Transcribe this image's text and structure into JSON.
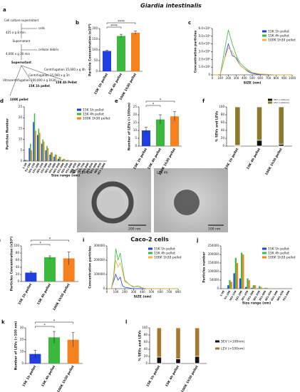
{
  "figure": {
    "title_top": "Giardia intestinalis",
    "title_bottom": "Caco-2 cells"
  },
  "diagram": {
    "panel": "a",
    "nodes": [
      "Cell culture supernatant",
      "425 x g 8 min",
      "cells",
      "Supernatant",
      "4,000 x g 30 min",
      "cellular debris",
      "Supernatant",
      "Centrifugation 15,000 x g 4h",
      "Ultracentrifugation 100,000 x g 1h30",
      "Centrifugation 15,000 x g 1h",
      "15K 1h pellet",
      "15K 4h Pellet",
      "100K pellet"
    ]
  },
  "images": {
    "panel": "g",
    "items": [
      {
        "label": "LEV 1h",
        "scale": "200 nm"
      },
      {
        "label": "LEV 4h",
        "scale": "100 nm"
      }
    ]
  },
  "chart_data": [
    {
      "panel": "b",
      "type": "bar",
      "ylabel": "Particle Concentration (x10⁹)",
      "categories": [
        "15K 1h pellet",
        "15K 4h pellet",
        "100K 1h30 pellet"
      ],
      "values": [
        95,
        165,
        180
      ],
      "errors": [
        3,
        8,
        8
      ],
      "colors": [
        "#1f3fe0",
        "#3cb83c",
        "#f5821f"
      ],
      "ylim": [
        0,
        200
      ],
      "yticks": [
        0,
        50,
        100,
        150,
        200
      ],
      "annotations": [
        {
          "text": "****",
          "between": [
            "15K 1h pellet",
            "15K 4h pellet"
          ]
        },
        {
          "text": "****",
          "between": [
            "15K 1h pellet",
            "100K 1h30 pellet"
          ]
        }
      ]
    },
    {
      "panel": "c",
      "type": "line",
      "xlabel": "SIZE (nm)",
      "ylabel": "Concentration particles",
      "x": [
        0,
        50,
        100,
        150,
        200,
        250,
        300,
        350,
        400,
        450,
        500,
        550,
        600,
        700,
        800,
        900,
        1000
      ],
      "series": [
        {
          "name": "15K 1h pellet",
          "color": "#1f3fe0",
          "values": [
            0,
            0,
            3000000,
            200000000,
            400000000,
            250000000,
            220000000,
            120000000,
            80000000,
            40000000,
            20000000,
            10000000,
            5000000,
            0,
            0,
            0,
            0
          ]
        },
        {
          "name": "15K 4h pellet",
          "color": "#3cb83c",
          "values": [
            0,
            0,
            5000000,
            300000000,
            580000000,
            400000000,
            250000000,
            150000000,
            100000000,
            60000000,
            30000000,
            20000000,
            10000000,
            5000000,
            0,
            0,
            0
          ]
        },
        {
          "name": "100K 1h30 pellet",
          "color": "#f5b040",
          "values": [
            0,
            0,
            3000000,
            200000000,
            350000000,
            300000000,
            200000000,
            120000000,
            80000000,
            50000000,
            30000000,
            20000000,
            10000000,
            5000000,
            0,
            0,
            0
          ]
        }
      ],
      "xlim": [
        0,
        1000
      ],
      "xticks": [
        0,
        100,
        200,
        300,
        400,
        500,
        600,
        700,
        800,
        900,
        1000
      ],
      "ylim": [
        0,
        600000000
      ],
      "yticks": [
        0,
        {
          "value": 100000000,
          "label": "1.0×10⁸"
        },
        {
          "value": 200000000,
          "label": "2.0×10⁸"
        },
        {
          "value": 300000000,
          "label": "3.0×10⁸"
        },
        {
          "value": 400000000,
          "label": "4.0×10⁸"
        },
        {
          "value": 500000000,
          "label": "5.0×10⁸"
        },
        {
          "value": 600000000,
          "label": "6.0×10⁸"
        }
      ],
      "legend": "upper right"
    },
    {
      "panel": "d",
      "type": "bar",
      "xlabel": "Size range (nm)",
      "ylabel": "Particles Number",
      "categories": [
        "1-50",
        "51-100",
        "101-150",
        "151-200",
        "201-250",
        "251-300",
        "301-350",
        "351-400",
        "401-450",
        "451-500",
        "501-550",
        "551-600",
        "601-650",
        "651-700",
        "701-750",
        "751-800",
        "801-850",
        "851-900",
        "901-950",
        "951-1000"
      ],
      "series": [
        {
          "name": "15K 1h pellet",
          "color": "#1f3fe0",
          "values": [
            0.5,
            6,
            18,
            12,
            8,
            5,
            3,
            2,
            1,
            0.5,
            0.3,
            0.2,
            0.1,
            0,
            0,
            0,
            0,
            0,
            0,
            0
          ]
        },
        {
          "name": "15K 4h pellet",
          "color": "#3cb83c",
          "values": [
            0.5,
            8,
            22,
            15,
            10,
            7,
            4,
            3,
            2,
            1,
            0.5,
            0.3,
            0.2,
            0.1,
            0,
            0,
            0,
            0,
            0,
            0
          ]
        },
        {
          "name": "100K 1h30 pellet",
          "color": "#f5821f",
          "values": [
            0.5,
            5,
            14,
            13,
            9,
            6,
            4,
            3,
            2,
            1,
            0.5,
            0.3,
            0.2,
            0.1,
            0,
            0,
            0,
            0,
            0,
            0
          ]
        }
      ],
      "ylim": [
        0,
        25
      ],
      "yticks": [
        0,
        5,
        10,
        15,
        20,
        25
      ],
      "legend": "upper right"
    },
    {
      "panel": "e",
      "type": "bar",
      "ylabel": "Number of LEVs (>100nm)",
      "categories": [
        "15K 1h pellet",
        "15K 4h pellet",
        "100K 1h30 pellet"
      ],
      "values": [
        10,
        17,
        19
      ],
      "errors": [
        2,
        3,
        3
      ],
      "colors": [
        "#1f3fe0",
        "#3cb83c",
        "#f5821f"
      ],
      "ylim": [
        0,
        25
      ],
      "yticks": [
        0,
        5,
        10,
        15,
        20,
        25
      ],
      "annotations": [
        {
          "text": "*",
          "between": [
            "15K 1h pellet",
            "15K 4h pellet"
          ]
        },
        {
          "text": "*",
          "between": [
            "15K 1h pellet",
            "100K 1h30 pellet"
          ]
        }
      ]
    },
    {
      "panel": "f",
      "type": "bar",
      "stacked": true,
      "ylabel": "% SEVs and LEVs",
      "categories": [
        "15K 1h pellet",
        "15K 4h pellet",
        "100K 1h30 pellet"
      ],
      "series": [
        {
          "name": "SEV (<100nm)",
          "color": "#111111",
          "values": [
            2,
            15,
            5
          ]
        },
        {
          "name": "LEV (>100nm)",
          "color": "#8b7a2c",
          "values": [
            98,
            85,
            95
          ]
        }
      ],
      "ylim": [
        0,
        100
      ],
      "yticks": [
        0,
        20,
        40,
        60,
        80,
        100
      ],
      "legend": "above"
    },
    {
      "panel": "h",
      "type": "bar",
      "ylabel": "Particles Concentration (x10⁹)",
      "categories": [
        "15K 1h pellet",
        "15K 4h pellet",
        "100K 1h30 pellet"
      ],
      "values": [
        25,
        68,
        65
      ],
      "errors": [
        3,
        4,
        18
      ],
      "colors": [
        "#1f3fe0",
        "#3cb83c",
        "#f5821f"
      ],
      "ylim": [
        0,
        100
      ],
      "yticks": [
        0,
        20,
        40,
        60,
        80,
        100
      ],
      "annotations": [
        {
          "text": "*",
          "between": [
            "15K 1h pellet",
            "15K 4h pellet"
          ]
        },
        {
          "text": "*",
          "between": [
            "15K 1h pellet",
            "100K 1h30 pellet"
          ]
        }
      ]
    },
    {
      "panel": "i",
      "type": "line",
      "xlabel": "SIZE (nm)",
      "ylabel": "Concentration particles",
      "x": [
        0,
        50,
        75,
        100,
        125,
        150,
        175,
        200,
        250,
        300,
        350,
        400,
        450,
        500,
        600,
        700,
        800
      ],
      "series": [
        {
          "name": "15K 1h pellet",
          "color": "#1f3fe0",
          "values": [
            0,
            0,
            50000,
            100000,
            60000,
            80000,
            20000,
            10000,
            5000,
            0,
            0,
            0,
            0,
            0,
            0,
            0,
            0
          ]
        },
        {
          "name": "15K 4h pellet",
          "color": "#3cb83c",
          "values": [
            0,
            0,
            80000,
            280000,
            200000,
            250000,
            150000,
            60000,
            30000,
            10000,
            20000,
            5000,
            0,
            0,
            0,
            0,
            0
          ]
        },
        {
          "name": "100K 1h30 pellet",
          "color": "#f5b040",
          "values": [
            0,
            0,
            60000,
            200000,
            150000,
            180000,
            120000,
            50000,
            30000,
            15000,
            10000,
            5000,
            0,
            0,
            0,
            0,
            0
          ]
        }
      ],
      "xlim": [
        0,
        800
      ],
      "xticks": [
        0,
        100,
        200,
        300,
        400,
        500,
        600,
        700,
        800
      ],
      "ylim": [
        0,
        300000
      ],
      "yticks": [
        0,
        100000,
        200000,
        300000
      ],
      "legend": "upper right"
    },
    {
      "panel": "j",
      "type": "bar",
      "xlabel": "Size range (nm)",
      "ylabel": "Particles number",
      "categories": [
        "1-50",
        "51-100",
        "101-150",
        "151-200",
        "201-250",
        "251-300",
        "301-350",
        "351-400",
        "401-450",
        "451-500",
        "501-550",
        "551-600"
      ],
      "series": [
        {
          "name": "15K 1h pellet",
          "color": "#1f3fe0",
          "values": [
            0,
            20000,
            90000,
            60000,
            10000,
            5000,
            2000,
            0,
            0,
            0,
            0,
            0
          ]
        },
        {
          "name": "15K 4h pellet",
          "color": "#3cb83c",
          "values": [
            0,
            50000,
            180000,
            210000,
            60000,
            20000,
            15000,
            5000,
            2000,
            0,
            0,
            0
          ]
        },
        {
          "name": "100K 1h30 pellet",
          "color": "#f5821f",
          "values": [
            0,
            40000,
            150000,
            200000,
            50000,
            20000,
            10000,
            5000,
            2000,
            0,
            0,
            0
          ]
        }
      ],
      "ylim": [
        0,
        250000
      ],
      "yticks": [
        0,
        50000,
        100000,
        150000,
        200000,
        250000
      ],
      "legend": "upper right"
    },
    {
      "panel": "k",
      "type": "bar",
      "ylabel": "Number of LEVs (>100 nm)",
      "categories": [
        "15K 1h pellet",
        "15K 4h pellet",
        "100K 1h30 pellet"
      ],
      "values": [
        8,
        22,
        20
      ],
      "errors": [
        3,
        5,
        6
      ],
      "colors": [
        "#1f3fe0",
        "#3cb83c",
        "#f5821f"
      ],
      "ylim": [
        0,
        30
      ],
      "yticks": [
        0,
        10,
        20,
        30
      ],
      "annotations": [
        {
          "text": "*",
          "between": [
            "15K 1h pellet",
            "15K 4h pellet"
          ]
        },
        {
          "text": "*",
          "between": [
            "15K 1h pellet",
            "100K 1h30 pellet"
          ]
        }
      ]
    },
    {
      "panel": "l",
      "type": "bar",
      "stacked": true,
      "ylabel": "% SEVs and LEVs",
      "categories": [
        "15K 1h pellet",
        "15K 4h pellet",
        "100K 1h30 pellet"
      ],
      "series": [
        {
          "name": "SEV (<100nm)",
          "color": "#111111",
          "values": [
            18,
            13,
            20
          ]
        },
        {
          "name": "LEV (>100nm)",
          "color": "#a57a30",
          "values": [
            82,
            87,
            80
          ]
        }
      ],
      "ylim": [
        0,
        100
      ],
      "yticks": [
        0,
        20,
        40,
        60,
        80,
        100
      ],
      "legend": "right"
    }
  ]
}
